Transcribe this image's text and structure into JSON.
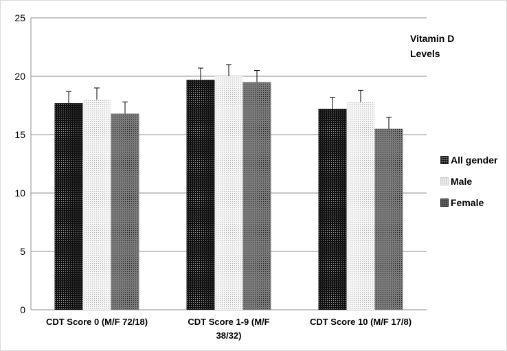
{
  "chart_data": {
    "type": "bar",
    "title": "Vitamin D\nLevels",
    "categories": [
      "CDT Score 0 (M/F 72/18)",
      "CDT Score 1-9 (M/F\n38/32)",
      "CDT Score 10 (M/F 17/8)"
    ],
    "series": [
      {
        "name": "All gender",
        "values": [
          17.7,
          19.7,
          17.2
        ],
        "errors": [
          1.0,
          1.0,
          1.0
        ],
        "color": "#111111"
      },
      {
        "name": "Male",
        "values": [
          18.0,
          20.0,
          17.8
        ],
        "errors": [
          1.0,
          1.0,
          1.0
        ],
        "color": "#f2f2f2"
      },
      {
        "name": "Female",
        "values": [
          16.8,
          19.5,
          15.5
        ],
        "errors": [
          1.0,
          1.0,
          1.0
        ],
        "color": "#6a6a6a"
      }
    ],
    "ylim": [
      0,
      25
    ],
    "yticks": [
      0,
      5,
      10,
      15,
      20,
      25
    ],
    "grid": true,
    "legend": "right",
    "xlabel": "",
    "ylabel": ""
  }
}
